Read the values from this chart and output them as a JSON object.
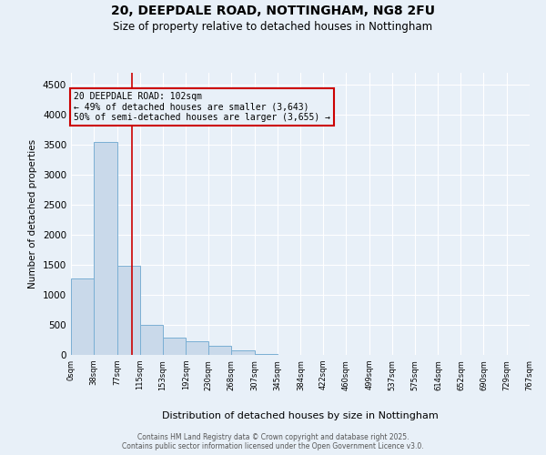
{
  "title_line1": "20, DEEPDALE ROAD, NOTTINGHAM, NG8 2FU",
  "title_line2": "Size of property relative to detached houses in Nottingham",
  "xlabel": "Distribution of detached houses by size in Nottingham",
  "ylabel": "Number of detached properties",
  "bar_color": "#c9d9ea",
  "bar_edge_color": "#7aafd4",
  "background_color": "#e8f0f8",
  "grid_color": "#ffffff",
  "annotation_box_color": "#cc0000",
  "property_line_color": "#cc0000",
  "property_sqm": 102,
  "annotation_text": "20 DEEPDALE ROAD: 102sqm\n← 49% of detached houses are smaller (3,643)\n50% of semi-detached houses are larger (3,655) →",
  "footer_line1": "Contains HM Land Registry data © Crown copyright and database right 2025.",
  "footer_line2": "Contains public sector information licensed under the Open Government Licence v3.0.",
  "bin_edges": [
    0,
    38,
    77,
    115,
    153,
    192,
    230,
    268,
    307,
    345,
    384,
    422,
    460,
    499,
    537,
    575,
    614,
    652,
    690,
    729,
    767
  ],
  "bar_heights": [
    1270,
    3550,
    1490,
    500,
    290,
    220,
    155,
    70,
    10,
    0,
    0,
    0,
    5,
    0,
    0,
    0,
    0,
    0,
    0,
    0
  ],
  "ylim": [
    0,
    4700
  ],
  "yticks": [
    0,
    500,
    1000,
    1500,
    2000,
    2500,
    3000,
    3500,
    4000,
    4500
  ]
}
